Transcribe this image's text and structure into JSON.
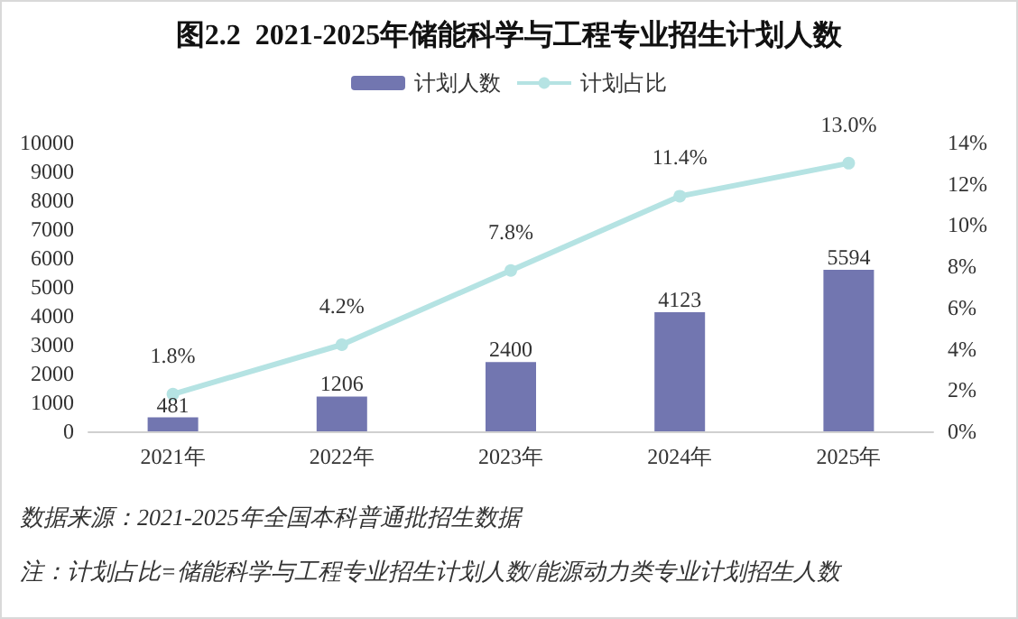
{
  "chart_data": {
    "type": "bar",
    "title": "图2.2  2021-2025年储能科学与工程专业招生计划人数",
    "categories": [
      "2021年",
      "2022年",
      "2023年",
      "2024年",
      "2025年"
    ],
    "series": [
      {
        "name": "计划人数",
        "color": "#7276b0",
        "values": [
          481,
          1206,
          2400,
          4123,
          5594
        ],
        "value_labels": [
          "481",
          "1206",
          "2400",
          "4123",
          "5594"
        ]
      },
      {
        "name": "计划占比",
        "type": "line",
        "axis": "y2",
        "color": "#b5e3e3",
        "marker": "circle",
        "values": [
          1.8,
          4.2,
          7.8,
          11.4,
          13.0
        ],
        "value_labels": [
          "1.8%",
          "4.2%",
          "7.8%",
          "11.4%",
          "13.0%"
        ]
      }
    ],
    "ylim": [
      0,
      10000
    ],
    "yticks": [
      0,
      1000,
      2000,
      3000,
      4000,
      5000,
      6000,
      7000,
      8000,
      9000,
      10000
    ],
    "y2lim": [
      0,
      14
    ],
    "y2ticks": [
      {
        "value": 0,
        "label": "0%"
      },
      {
        "value": 2,
        "label": "2%"
      },
      {
        "value": 4,
        "label": "4%"
      },
      {
        "value": 6,
        "label": "6%"
      },
      {
        "value": 8,
        "label": "8%"
      },
      {
        "value": 10,
        "label": "10%"
      },
      {
        "value": 12,
        "label": "12%"
      },
      {
        "value": 14,
        "label": "14%"
      }
    ],
    "grid": false,
    "legend": "top",
    "annotations": [
      "数据来源：2021-2025年全国本科普通批招生数据",
      "注：计划占比=储能科学与工程专业招生计划人数/能源动力类专业计划招生人数"
    ]
  }
}
